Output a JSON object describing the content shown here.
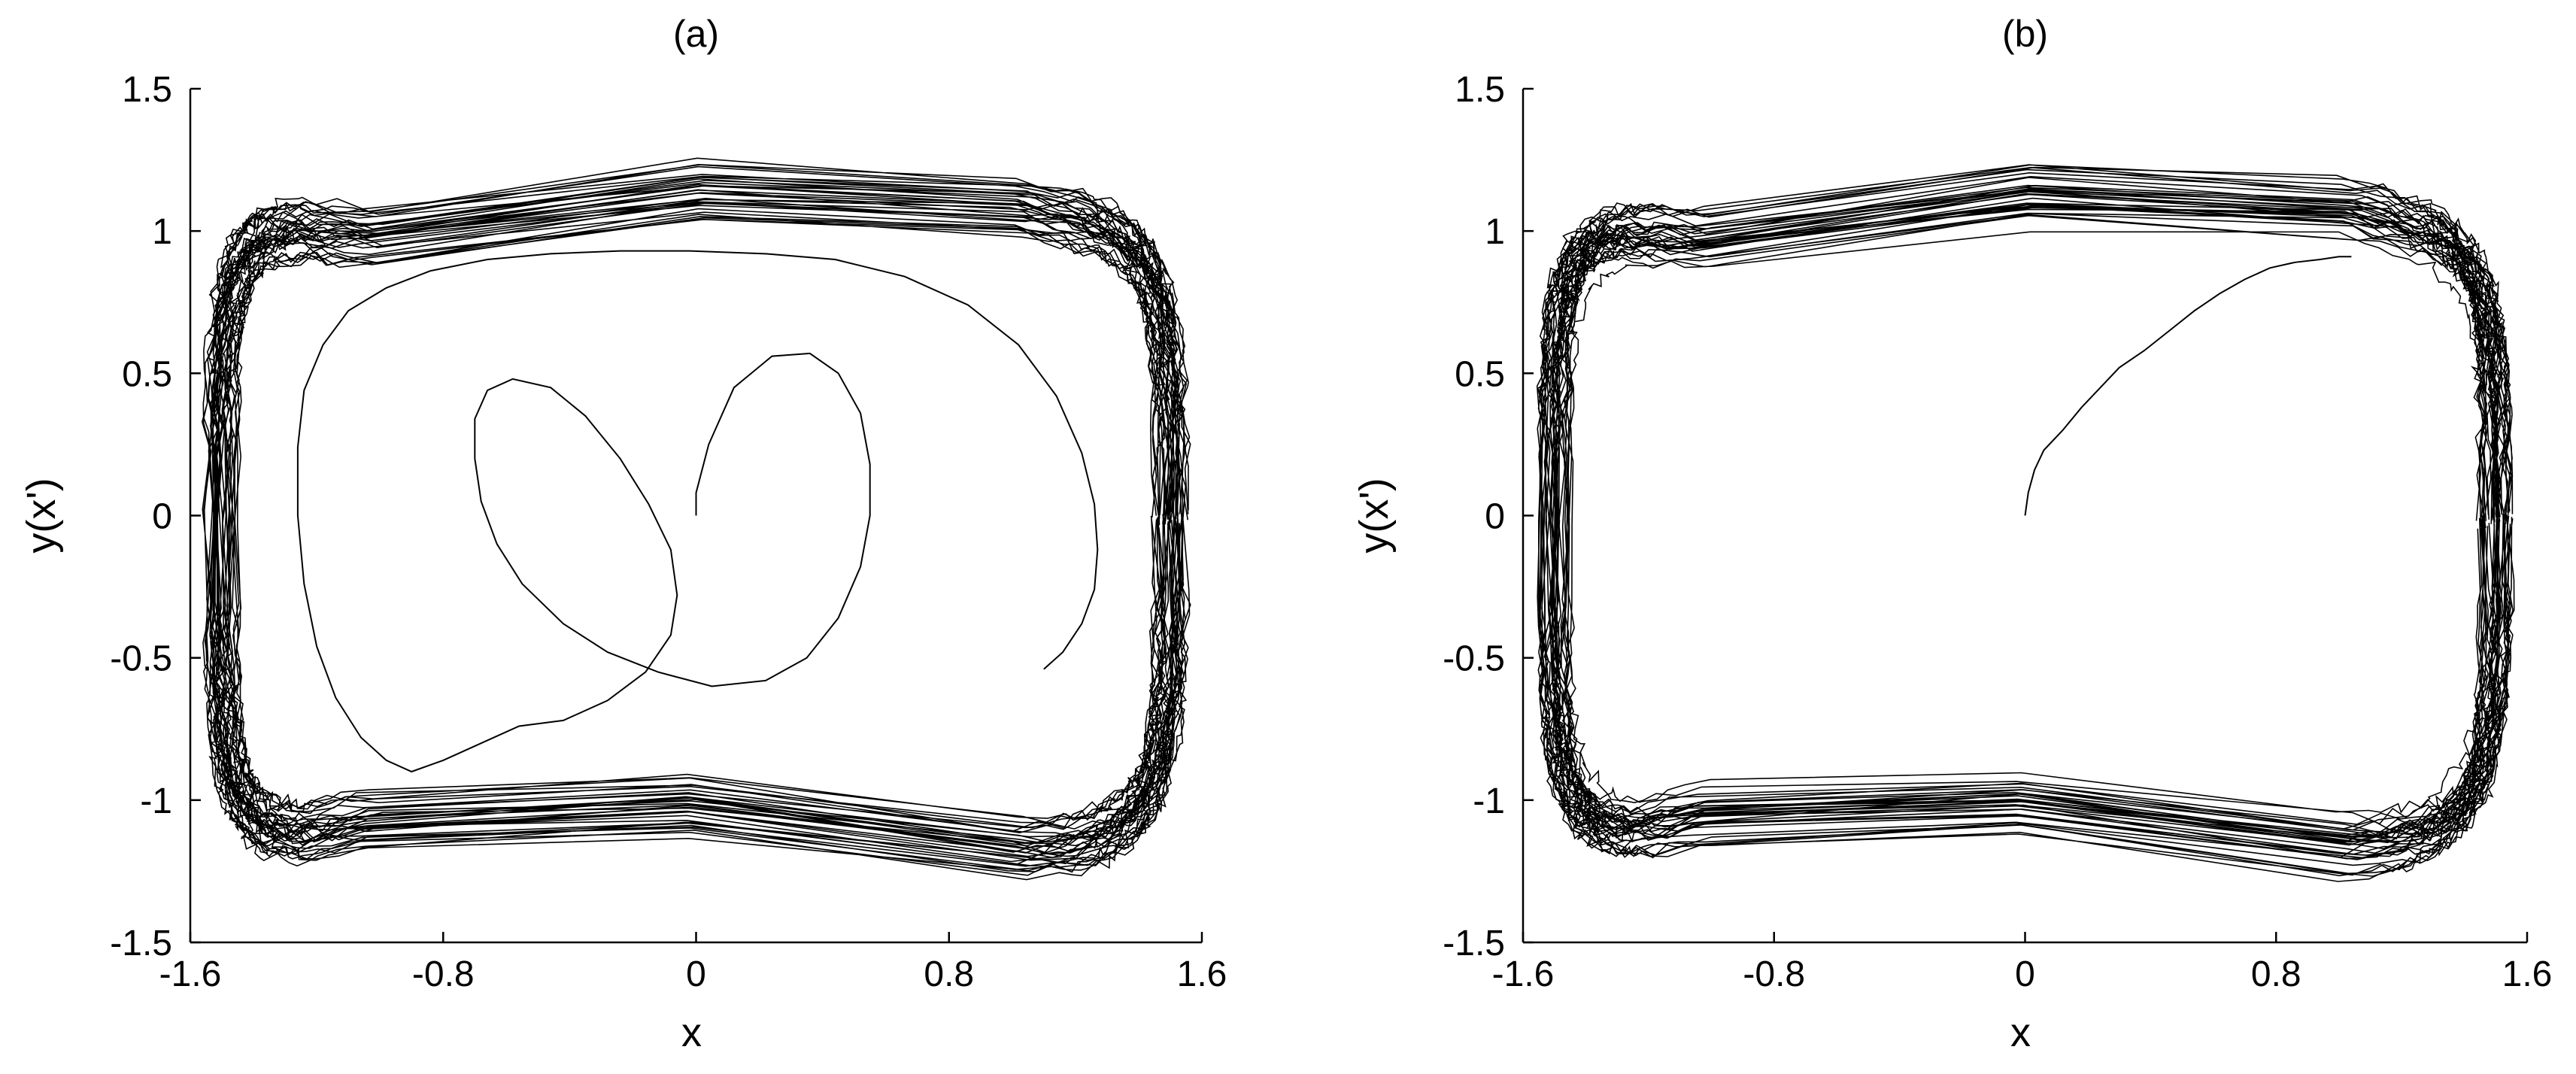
{
  "chart_data": [
    {
      "type": "line",
      "title": "(a)",
      "xlabel": "x",
      "ylabel": "y(x')",
      "xlim": [
        -1.6,
        1.6
      ],
      "ylim": [
        -1.5,
        1.5
      ],
      "xticks": [
        "-1.6",
        "-0.8",
        "0",
        "0.8",
        "1.6"
      ],
      "yticks": [
        "1.5",
        "1",
        "0.5",
        "0",
        "-0.5",
        "-1",
        "-1.5"
      ],
      "grid": false,
      "line_color": "#000000",
      "series": [
        {
          "x": [
            0,
            0.0,
            0.04,
            0.12,
            0.24,
            0.36,
            0.45,
            0.52,
            0.55,
            0.55,
            0.52,
            0.45,
            0.35,
            0.22,
            0.05,
            -0.12,
            -0.28,
            -0.42,
            -0.55,
            -0.63,
            -0.68,
            -0.7,
            -0.7,
            -0.66,
            -0.58,
            -0.46,
            -0.35,
            -0.24,
            -0.15,
            -0.08,
            -0.06,
            -0.08,
            -0.16,
            -0.28,
            -0.42,
            -0.56,
            -0.68,
            -0.8,
            -0.9,
            -0.98,
            -1.06,
            -1.14,
            -1.2,
            -1.24,
            -1.26,
            -1.26,
            -1.24,
            -1.18,
            -1.1,
            -0.98,
            -0.84,
            -0.66,
            -0.46,
            -0.24,
            -0.02,
            0.22,
            0.44,
            0.66,
            0.86,
            1.02,
            1.14,
            1.22,
            1.26,
            1.27,
            1.26,
            1.22,
            1.16,
            1.1
          ],
          "y": [
            0,
            0.08,
            0.25,
            0.45,
            0.56,
            0.57,
            0.5,
            0.36,
            0.18,
            0.0,
            -0.18,
            -0.36,
            -0.5,
            -0.58,
            -0.6,
            -0.55,
            -0.48,
            -0.38,
            -0.24,
            -0.1,
            0.05,
            0.2,
            0.34,
            0.44,
            0.48,
            0.45,
            0.35,
            0.2,
            0.04,
            -0.12,
            -0.28,
            -0.42,
            -0.55,
            -0.65,
            -0.72,
            -0.74,
            -0.8,
            -0.86,
            -0.9,
            -0.86,
            -0.78,
            -0.64,
            -0.46,
            -0.24,
            0.0,
            0.24,
            0.44,
            0.6,
            0.72,
            0.8,
            0.86,
            0.9,
            0.92,
            0.93,
            0.93,
            0.92,
            0.9,
            0.84,
            0.74,
            0.6,
            0.42,
            0.22,
            0.04,
            -0.12,
            -0.26,
            -0.38,
            -0.48,
            -0.54
          ]
        }
      ]
    },
    {
      "type": "line",
      "title": "(b)",
      "xlabel": "x",
      "ylabel": "y(x')",
      "xlim": [
        -1.6,
        1.6
      ],
      "ylim": [
        -1.5,
        1.5
      ],
      "xticks": [
        "-1.6",
        "-0.8",
        "0",
        "0.8",
        "1.6"
      ],
      "yticks": [
        "1.5",
        "1",
        "0.5",
        "0",
        "-0.5",
        "-1",
        "-1.5"
      ],
      "grid": false,
      "line_color": "#000000",
      "series": [
        {
          "x": [
            0,
            0.01,
            0.03,
            0.06,
            0.12,
            0.18,
            0.24,
            0.3,
            0.38,
            0.46,
            0.54,
            0.62,
            0.7,
            0.78,
            0.86,
            0.94,
            1.0,
            1.04
          ],
          "y": [
            0,
            0.08,
            0.16,
            0.23,
            0.3,
            0.38,
            0.45,
            0.52,
            0.58,
            0.65,
            0.72,
            0.78,
            0.83,
            0.87,
            0.89,
            0.9,
            0.91,
            0.91
          ]
        }
      ]
    }
  ]
}
